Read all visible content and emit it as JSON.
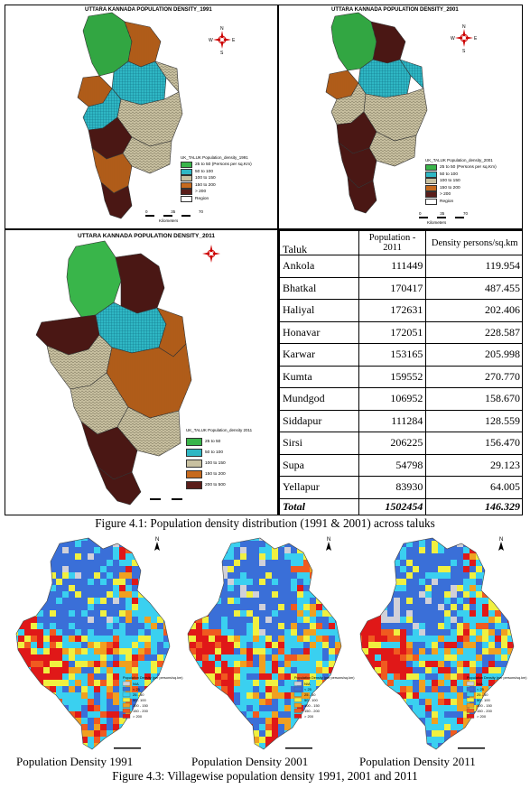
{
  "figure_top": {
    "map_1991": {
      "title": "UTTARA KANNADA POPULATION DENSITY_1991",
      "legend_caption": "UK_TALUK Population_density_1991",
      "legend_unit": "(Persons per sq.Km)",
      "legend": [
        {
          "label": "25 to 50",
          "color": "#39b54a"
        },
        {
          "label": "50 to 100",
          "color": "#2fb7c4"
        },
        {
          "label": "100 to 150",
          "color": "#c8c0a0"
        },
        {
          "label": "150 to 200",
          "color": "#c66a1e"
        },
        {
          "label": "> 200",
          "color": "#5a1e1a"
        },
        {
          "label": "Region",
          "color": "#ffffff"
        }
      ],
      "scale_label": "Kilometers",
      "scale_ticks": [
        "0",
        "35",
        "70"
      ]
    },
    "map_2001": {
      "title": "UTTARA KANNADA POPULATION DENSITY_2001",
      "legend_caption": "UK_TALUK Population_density_2001",
      "legend_unit": "(Persons per sq.Km)",
      "legend": [
        {
          "label": "25 to 50",
          "color": "#39b54a"
        },
        {
          "label": "50 to 100",
          "color": "#2fb7c4"
        },
        {
          "label": "100 to 150",
          "color": "#c8c0a0"
        },
        {
          "label": "150 to 200",
          "color": "#c66a1e"
        },
        {
          "label": "> 200",
          "color": "#5a1e1a"
        },
        {
          "label": "Region",
          "color": "#ffffff"
        }
      ],
      "scale_label": "Kilometers",
      "scale_ticks": [
        "0",
        "35",
        "70"
      ]
    },
    "map_2011": {
      "title": "UTTARA KANNADA POPULATION DENSITY_2011",
      "legend_caption": "UK_TALUK Population_density 2011",
      "legend": [
        {
          "label": "25 to 50",
          "color": "#39b54a"
        },
        {
          "label": "50 to 100",
          "color": "#2fb7c4"
        },
        {
          "label": "100 to 150",
          "color": "#c8c0a0"
        },
        {
          "label": "150 to 200",
          "color": "#c66a1e"
        },
        {
          "label": "200 to 500",
          "color": "#5a1e1a"
        }
      ]
    },
    "table": {
      "headers": [
        "Taluk",
        "Population - 2011",
        "Density persons/sq.km"
      ],
      "rows": [
        {
          "taluk": "Ankola",
          "population": "111449",
          "density": "119.954"
        },
        {
          "taluk": "Bhatkal",
          "population": "170417",
          "density": "487.455"
        },
        {
          "taluk": "Haliyal",
          "population": "172631",
          "density": "202.406"
        },
        {
          "taluk": "Honavar",
          "population": "172051",
          "density": "228.587"
        },
        {
          "taluk": "Karwar",
          "population": "153165",
          "density": "205.998"
        },
        {
          "taluk": "Kumta",
          "population": "159552",
          "density": "270.770"
        },
        {
          "taluk": "Mundgod",
          "population": "106952",
          "density": "158.670"
        },
        {
          "taluk": "Siddapur",
          "population": "111284",
          "density": "128.559"
        },
        {
          "taluk": "Sirsi",
          "population": "206225",
          "density": "156.470"
        },
        {
          "taluk": "Supa",
          "population": "54798",
          "density": "29.123"
        },
        {
          "taluk": "Yellapur",
          "population": "83930",
          "density": "64.005"
        }
      ],
      "total": {
        "taluk": "Total",
        "population": "1502454",
        "density": "146.329"
      }
    },
    "caption": "Figure 4.1: Population density distribution (1991 & 2001) across taluks"
  },
  "figure_bottom": {
    "maps": [
      {
        "sub_caption": "Population Density 1991"
      },
      {
        "sub_caption": "Population Density 2001"
      },
      {
        "sub_caption": "Population Density 2011"
      }
    ],
    "legend_title": "Population Density (per persons/sq.km)",
    "legend": [
      {
        "label": "N/A",
        "color": "#d0d0d8"
      },
      {
        "label": "< 25",
        "color": "#3a6fd8"
      },
      {
        "label": "25 - 50",
        "color": "#3ad0f0"
      },
      {
        "label": "50 - 100",
        "color": "#f0f040"
      },
      {
        "label": "100 - 150",
        "color": "#f0a020"
      },
      {
        "label": "150 - 200",
        "color": "#f05a20"
      },
      {
        "label": "> 200",
        "color": "#e01818"
      }
    ],
    "north_label": "N",
    "caption": "Figure 4.3: Villagewise population density 1991, 2001 and 2011"
  }
}
